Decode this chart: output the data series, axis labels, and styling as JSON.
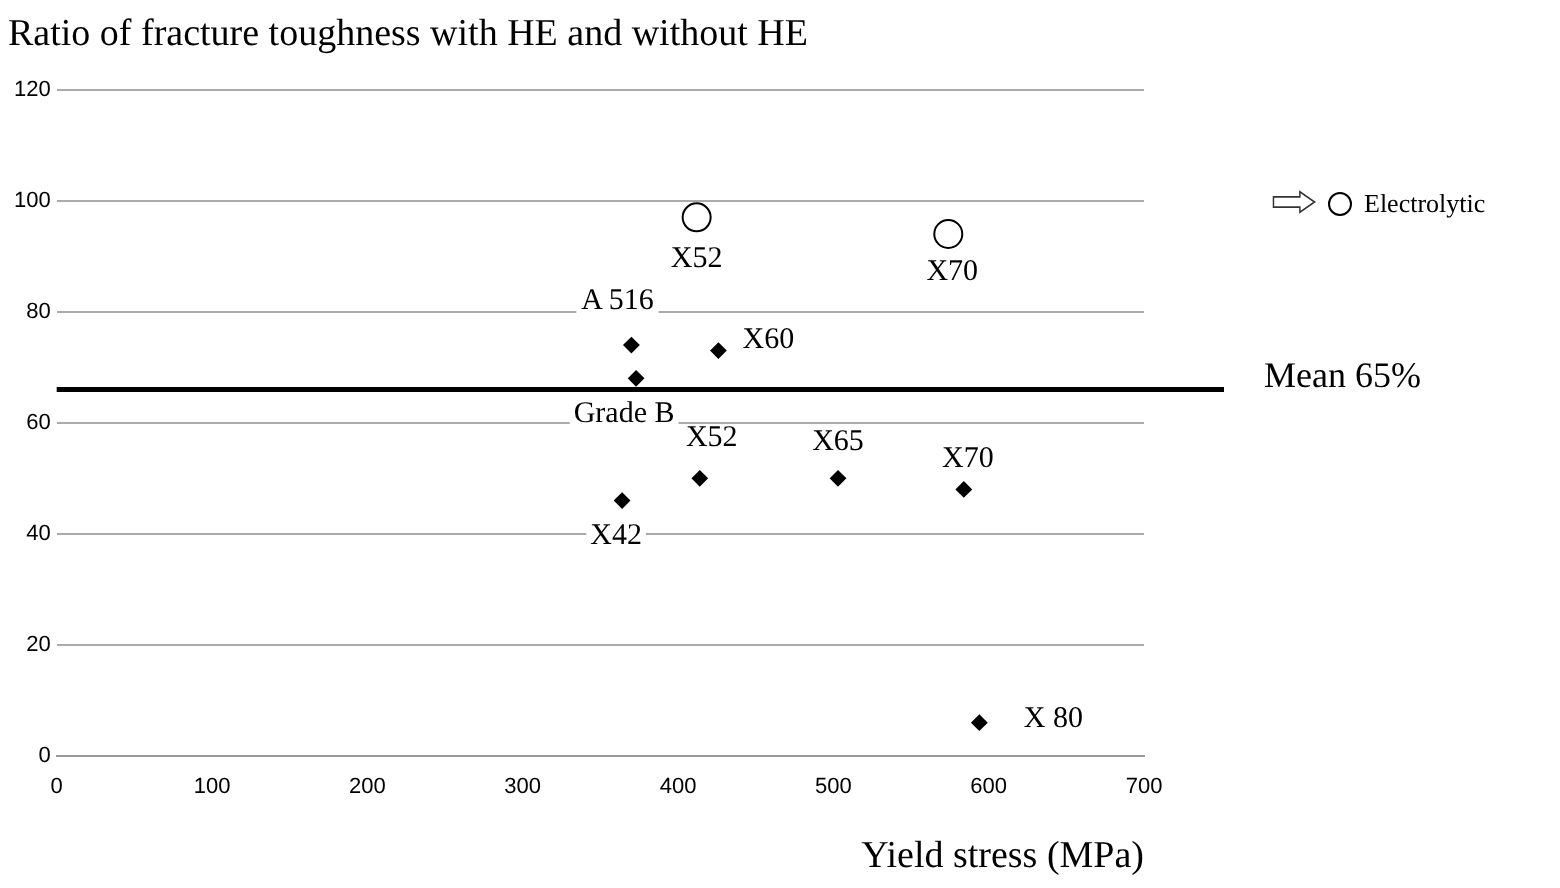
{
  "chart_data": {
    "type": "scatter",
    "title": "Ratio of fracture toughness with HE and without HE",
    "xlabel": "Yield stress (MPa)",
    "xlim": [
      0,
      700
    ],
    "xticks": [
      0,
      100,
      200,
      300,
      400,
      500,
      600,
      700
    ],
    "ylim": [
      0,
      120
    ],
    "yticks": [
      0,
      20,
      40,
      60,
      80,
      100,
      120
    ],
    "grid": "y",
    "marker": "diamond",
    "legend": "right",
    "series": [
      {
        "color": "#000000",
        "x": [
          370,
          373,
          426,
          364,
          414,
          503,
          584,
          594
        ],
        "values": [
          74,
          68,
          73,
          46,
          50,
          50,
          48,
          6
        ]
      },
      {
        "name": "Electrolytic",
        "color": "#000000",
        "marker": "circle",
        "x": [
          412,
          574
        ],
        "values": [
          97,
          94
        ]
      }
    ],
    "ref_lines": [
      {
        "axis": "y",
        "value": 66,
        "label": "Mean 65%",
        "color": "#000000"
      }
    ],
    "annotations": [
      {
        "text": "A 516",
        "x": 370,
        "y": 74
      },
      {
        "text": "Grade B",
        "x": 373,
        "y": 68
      },
      {
        "text": "X60",
        "x": 426,
        "y": 73
      },
      {
        "text": "X42",
        "x": 364,
        "y": 46
      },
      {
        "text": "X52",
        "x": 414,
        "y": 50
      },
      {
        "text": "X65",
        "x": 503,
        "y": 50
      },
      {
        "text": "X70",
        "x": 584,
        "y": 48
      },
      {
        "text": "X 80",
        "x": 594,
        "y": 6
      },
      {
        "text": "X52",
        "x": 412,
        "y": 97
      },
      {
        "text": "X70",
        "x": 574,
        "y": 94
      }
    ]
  }
}
